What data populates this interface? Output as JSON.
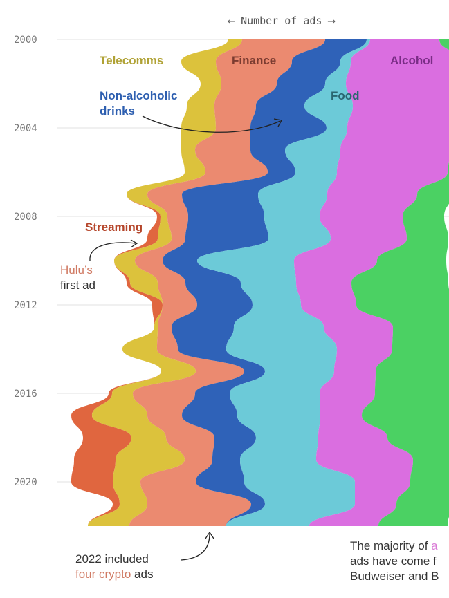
{
  "chart_data": {
    "type": "area",
    "subtype": "streamgraph",
    "orientation": "vertical-time",
    "xlabel": "Number of ads",
    "y_ticks": [
      2000,
      2004,
      2008,
      2012,
      2016,
      2020
    ],
    "ylim": [
      2000,
      2022
    ],
    "grid": true,
    "years": [
      2000,
      2001,
      2002,
      2003,
      2004,
      2005,
      2006,
      2007,
      2008,
      2009,
      2010,
      2011,
      2012,
      2013,
      2014,
      2015,
      2016,
      2017,
      2018,
      2019,
      2020,
      2021,
      2022
    ],
    "series": [
      {
        "name": "Streaming",
        "color": "#e0663f",
        "values": [
          0,
          0,
          0,
          0,
          0,
          0,
          0,
          0,
          0.5,
          1.5,
          0,
          0.5,
          1.5,
          0,
          0,
          0,
          0.5,
          3,
          7,
          6,
          6,
          1,
          0
        ]
      },
      {
        "name": "Telecomms",
        "color": "#dcc23c",
        "values": [
          2,
          5,
          3,
          4,
          5,
          2,
          3,
          3,
          1,
          2,
          3,
          4,
          0,
          0.5,
          5,
          5,
          3,
          8,
          5,
          10,
          4,
          4,
          6
        ]
      },
      {
        "name": "Finance",
        "color": "#eb8a70",
        "values": [
          12,
          11,
          8,
          6,
          5,
          8,
          9,
          5,
          3,
          2,
          4,
          4,
          5,
          2,
          3,
          7,
          9,
          5,
          7,
          4,
          8,
          15,
          14
        ]
      },
      {
        "name": "Non-alcoholic drinks",
        "color": "#2f62b8",
        "values": [
          6,
          7,
          7,
          7,
          11,
          5,
          4,
          11,
          11,
          12,
          5,
          8,
          8,
          9,
          7,
          3,
          5,
          8,
          6,
          4,
          7,
          2,
          0
        ]
      },
      {
        "name": "Food",
        "color": "#6ccad8",
        "values": [
          0.5,
          1.5,
          3,
          7,
          3,
          8,
          6,
          10,
          8,
          9,
          14,
          8,
          7,
          13,
          16,
          10,
          13,
          12,
          9,
          11,
          16,
          13,
          12
        ]
      },
      {
        "name": "Alcohol",
        "color": "#da6ee0",
        "values": [
          10,
          16,
          15,
          15,
          15,
          16,
          16,
          13,
          12,
          11,
          12,
          8,
          8,
          10,
          8,
          6,
          8,
          6,
          10,
          14,
          8,
          6,
          10
        ]
      },
      {
        "color": "#4bd163",
        "values": [
          8,
          6,
          5,
          5,
          5,
          4,
          5,
          5,
          6,
          6,
          10,
          14,
          14,
          9,
          9,
          12,
          11,
          13,
          9,
          6,
          6,
          8,
          10
        ]
      }
    ],
    "annotations": {
      "axis_arrow_left": "⟵",
      "axis_arrow_right": "⟶",
      "labels": {
        "telecomms": "Telecomms",
        "finance": "Finance",
        "alcohol": "Alcohol",
        "nonalc_line1": "Non-alcoholic",
        "nonalc_line2": "drinks",
        "food": "Food",
        "streaming": "Streaming"
      },
      "hulu": {
        "highlight": "Hulu’s",
        "rest": "first ad"
      },
      "crypto": {
        "line1": "2022 included",
        "highlight": "four crypto",
        "rest": " ads"
      },
      "majority": {
        "line1_pre": "The majority of ",
        "line1_highlight": "a",
        "line2": "ads have come f",
        "line3": "Budweiser and B"
      }
    }
  }
}
